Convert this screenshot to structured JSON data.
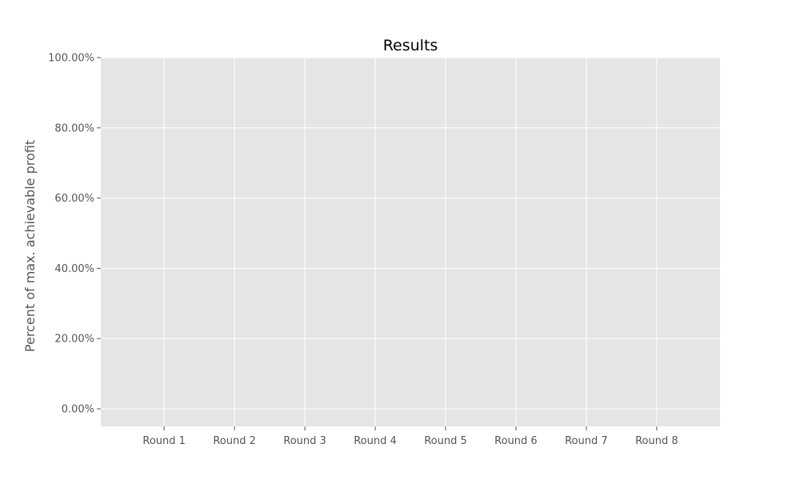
{
  "chart_data": {
    "type": "bar",
    "title": "Results",
    "xlabel": "",
    "ylabel": "Percent of max. achievable profit",
    "categories": [
      "Round 1",
      "Round 2",
      "Round 3",
      "Round 4",
      "Round 5",
      "Round 6",
      "Round 7",
      "Round 8"
    ],
    "series": [],
    "ylim": [
      -0.05,
      1.0
    ],
    "yticks": [
      0,
      0.2,
      0.4,
      0.6,
      0.8,
      1.0
    ],
    "ytick_labels": [
      "0.00%",
      "20.00%",
      "40.00%",
      "60.00%",
      "80.00%",
      "100.00%"
    ],
    "grid": true,
    "legend": "none",
    "colors": {
      "plot_background": "#e5e5e5",
      "grid": "#ffffff",
      "tick_color": "#555555",
      "title_color": "#000000"
    }
  }
}
